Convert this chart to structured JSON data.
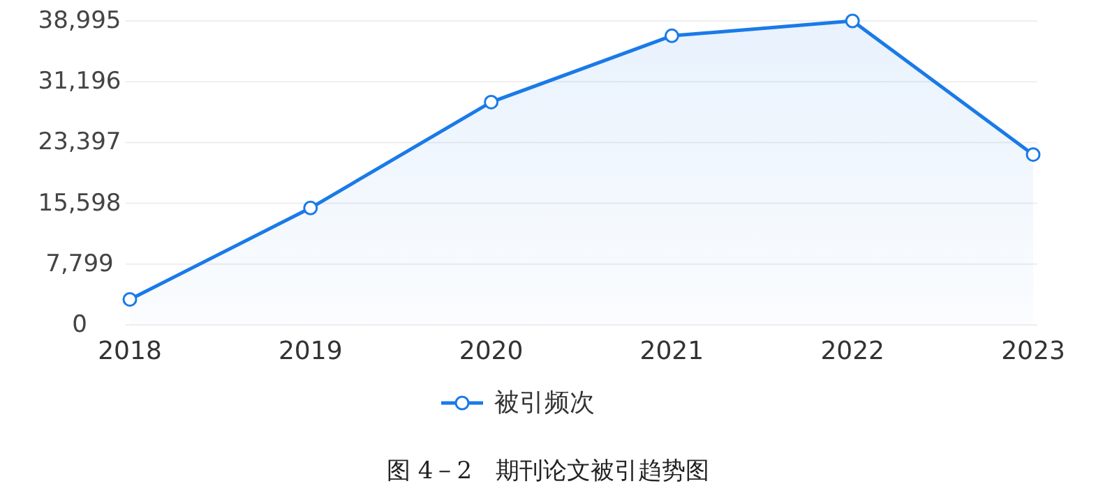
{
  "chart_data": {
    "type": "area",
    "categories": [
      "2018",
      "2019",
      "2020",
      "2021",
      "2022",
      "2023"
    ],
    "series": [
      {
        "name": "被引频次",
        "color": "#1a7ae8",
        "values": [
          3270,
          15000,
          28580,
          37090,
          38995,
          21850
        ]
      }
    ],
    "ylim": [
      0,
      38995
    ],
    "yticks": [
      0,
      {
        "value": 7799,
        "label": "7,799"
      },
      {
        "value": 15598,
        "label": "15,598"
      },
      {
        "value": 23397,
        "label": "23,397"
      },
      {
        "value": 31196,
        "label": "31,196"
      },
      {
        "value": 38995,
        "label": "38,995"
      }
    ],
    "grid": "y",
    "marker": "circle",
    "legend": "bottom",
    "annotations": [
      "图 4－2　期刊论文被引趋势图"
    ]
  }
}
